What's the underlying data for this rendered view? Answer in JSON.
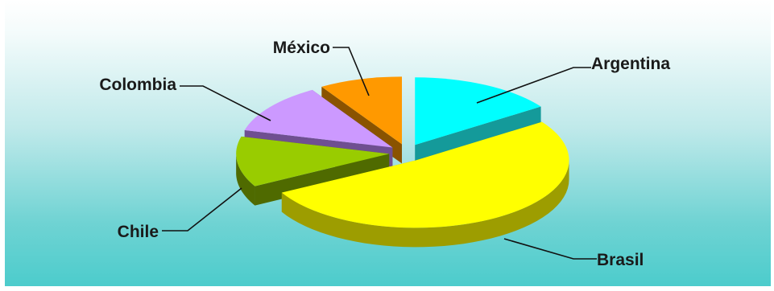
{
  "chart_data": {
    "type": "pie",
    "style": "3d-exploded",
    "title": "",
    "slices": [
      {
        "label": "Argentina",
        "value": 14,
        "color": "#00ffff",
        "side_color": "#149a9a"
      },
      {
        "label": "Brasil",
        "value": 47,
        "color": "#ffff00",
        "side_color": "#9d9d00"
      },
      {
        "label": "Chile",
        "value": 11,
        "color": "#99cc00",
        "side_color": "#4f6a00"
      },
      {
        "label": "Colombia",
        "value": 11,
        "color": "#cc99ff",
        "side_color": "#6f4f91"
      },
      {
        "label": "México",
        "value": 8,
        "color": "#ff9900",
        "side_color": "#8a5300"
      }
    ],
    "legend": "none",
    "data_labels": "category-name-with-leader-lines"
  }
}
